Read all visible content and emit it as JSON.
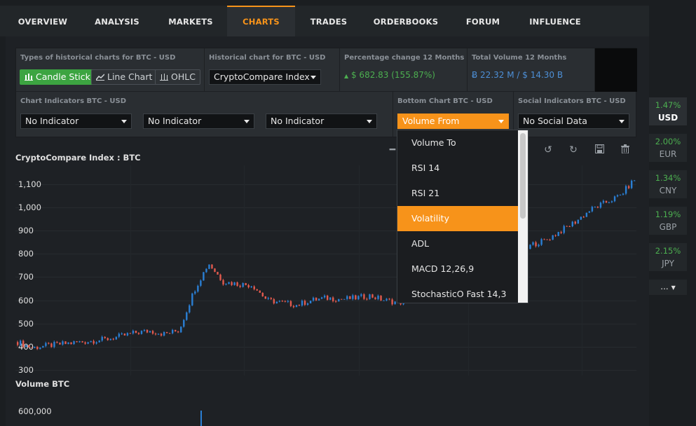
{
  "nav": {
    "tabs": [
      {
        "label": "OVERVIEW"
      },
      {
        "label": "ANALYSIS"
      },
      {
        "label": "MARKETS"
      },
      {
        "label": "CHARTS"
      },
      {
        "label": "TRADES"
      },
      {
        "label": "ORDERBOOKS"
      },
      {
        "label": "FORUM"
      },
      {
        "label": "INFLUENCE"
      }
    ],
    "active": "CHARTS"
  },
  "options": {
    "chart_types_title": "Types of historical charts for BTC - USD",
    "chart_types": [
      "Candle Stick",
      "Line Chart",
      "OHLC"
    ],
    "historical_title": "Historical chart for BTC - USD",
    "historical_value": "CryptoCompare Index",
    "pct_title": "Percentage change 12 Months",
    "pct_value": "$ 682.83 (155.87%)",
    "vol_title": "Total Volume 12 Months",
    "vol_value": "Ƀ 22.32 M / $ 14.30 B",
    "indicators_title": "Chart Indicators BTC - USD",
    "indicator_values": [
      "No Indicator",
      "No Indicator",
      "No Indicator"
    ],
    "bottom_title": "Bottom Chart BTC - USD",
    "bottom_value": "Volume From",
    "social_title": "Social Indicators BTC - USD",
    "social_value": "No Social Data"
  },
  "dropdown": {
    "items": [
      "Volume To",
      "RSI 14",
      "RSI 21",
      "Volatility",
      "ADL",
      "MACD 12,26,9",
      "StochasticO Fast 14,3"
    ],
    "selected": "Volatility"
  },
  "chart": {
    "title": "CryptoCompare Index : BTC",
    "volume_title": "Volume BTC",
    "volume_tick": "600,000"
  },
  "chart_data": {
    "type": "candlestick",
    "title": "CryptoCompare Index : BTC",
    "y_ticks": [
      "1,100",
      "1,000",
      "900",
      "800",
      "700",
      "600",
      "500",
      "400",
      "300"
    ],
    "ylim": [
      300,
      1100
    ],
    "grid": true,
    "series": [
      {
        "name": "price_close",
        "values": [
          420,
          395,
          405,
          412,
          418,
          425,
          432,
          445,
          460,
          468,
          455,
          470,
          640,
          760,
          680,
          670,
          665,
          600,
          590,
          580,
          600,
          610,
          605,
          610,
          620,
          600,
          590,
          610,
          620,
          640,
          660,
          700,
          950,
          830,
          780,
          840,
          860,
          900,
          940,
          990,
          1020,
          1050,
          1120
        ]
      }
    ],
    "volume_panel": {
      "title": "Volume BTC",
      "tick": "600,000"
    }
  },
  "currencies": [
    {
      "pct": "1.47%",
      "name": "USD",
      "active": true
    },
    {
      "pct": "2.00%",
      "name": "EUR"
    },
    {
      "pct": "1.34%",
      "name": "CNY"
    },
    {
      "pct": "1.19%",
      "name": "GBP"
    },
    {
      "pct": "2.15%",
      "name": "JPY"
    }
  ],
  "more_label": "...",
  "colors": {
    "accent": "#f7931a",
    "up": "#2a7fd4",
    "down": "#e25a4e",
    "green": "#3ca441"
  }
}
